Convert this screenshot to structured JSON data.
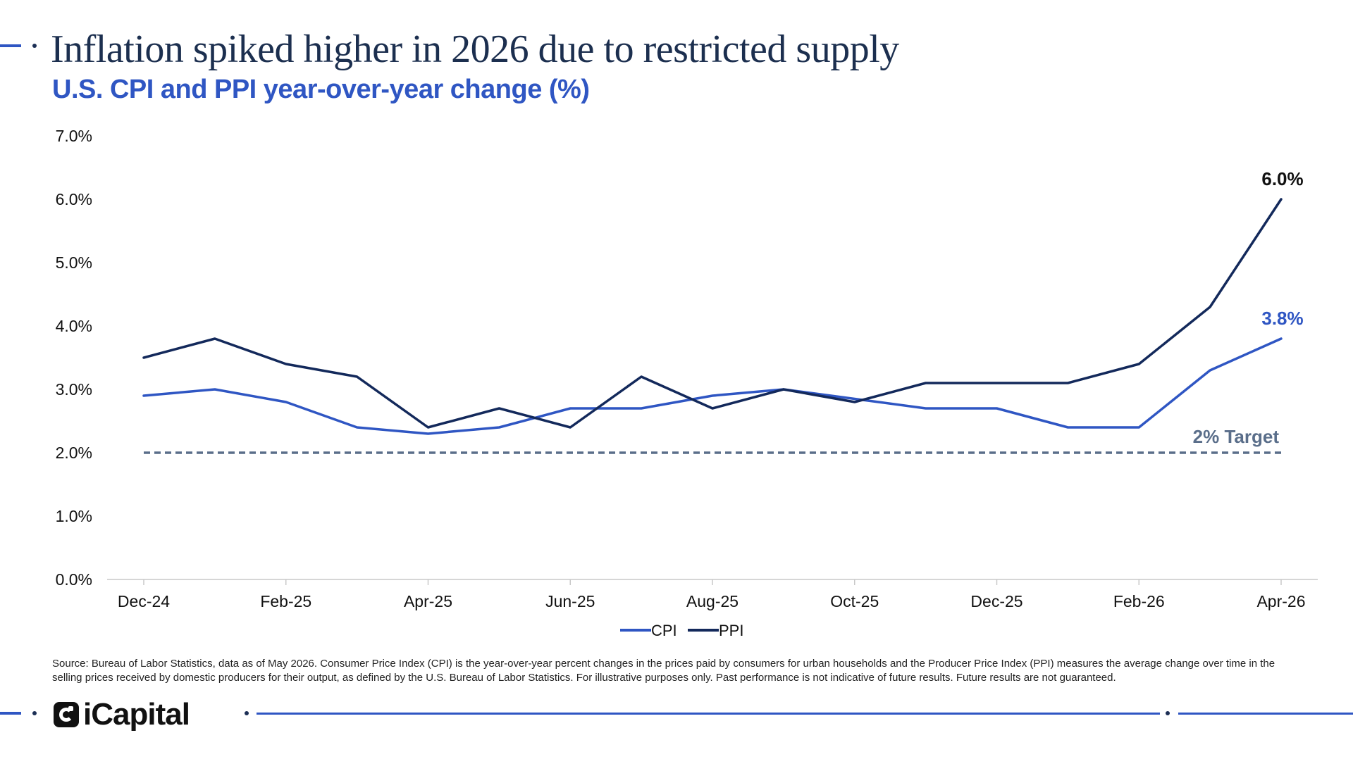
{
  "header": {
    "title": "Inflation spiked higher in 2026 due to restricted supply",
    "subtitle": "U.S. CPI and PPI year-over-year change (%)"
  },
  "chart_data": {
    "type": "line",
    "x": [
      "Dec-24",
      "Jan-25",
      "Feb-25",
      "Mar-25",
      "Apr-25",
      "May-25",
      "Jun-25",
      "Jul-25",
      "Aug-25",
      "Sep-25",
      "Oct-25",
      "Nov-25",
      "Dec-25",
      "Jan-26",
      "Feb-26",
      "Mar-26",
      "Apr-26"
    ],
    "x_tick_labels": [
      "Dec-24",
      "Feb-25",
      "Apr-25",
      "Jun-25",
      "Aug-25",
      "Oct-25",
      "Dec-25",
      "Feb-26",
      "Apr-26"
    ],
    "y_tick_labels": [
      "0.0%",
      "1.0%",
      "2.0%",
      "3.0%",
      "4.0%",
      "5.0%",
      "6.0%",
      "7.0%"
    ],
    "ylim": [
      0,
      7
    ],
    "series": [
      {
        "name": "CPI",
        "color": "#2f56c3",
        "values": [
          2.9,
          3.0,
          2.8,
          2.4,
          2.3,
          2.4,
          2.7,
          2.7,
          2.9,
          3.0,
          2.85,
          2.7,
          2.7,
          2.4,
          2.4,
          3.3,
          3.8
        ],
        "end_label": "3.8%"
      },
      {
        "name": "PPI",
        "color": "#13295b",
        "values": [
          3.5,
          3.8,
          3.4,
          3.2,
          2.4,
          2.7,
          2.4,
          3.2,
          2.7,
          3.0,
          2.8,
          3.1,
          3.1,
          3.1,
          3.4,
          4.3,
          6.0
        ],
        "end_label": "6.0%"
      }
    ],
    "reference_line": {
      "value": 2.0,
      "label": "2% Target",
      "color": "#5a6e8a",
      "style": "dashed"
    },
    "legend_position": "bottom-center",
    "grid": false
  },
  "footer": {
    "source": "Source: Bureau of Labor Statistics, data as of May 2026. Consumer Price Index (CPI) is the year-over-year percent changes in the prices paid by consumers for urban households and the Producer Price Index (PPI) measures the average change over time in the selling prices received by domestic producers for their output, as defined by the U.S. Bureau of Labor Statistics. For illustrative purposes only. Past performance is not indicative of future results. Future results are not guaranteed.",
    "logo_text": "iCapital"
  }
}
